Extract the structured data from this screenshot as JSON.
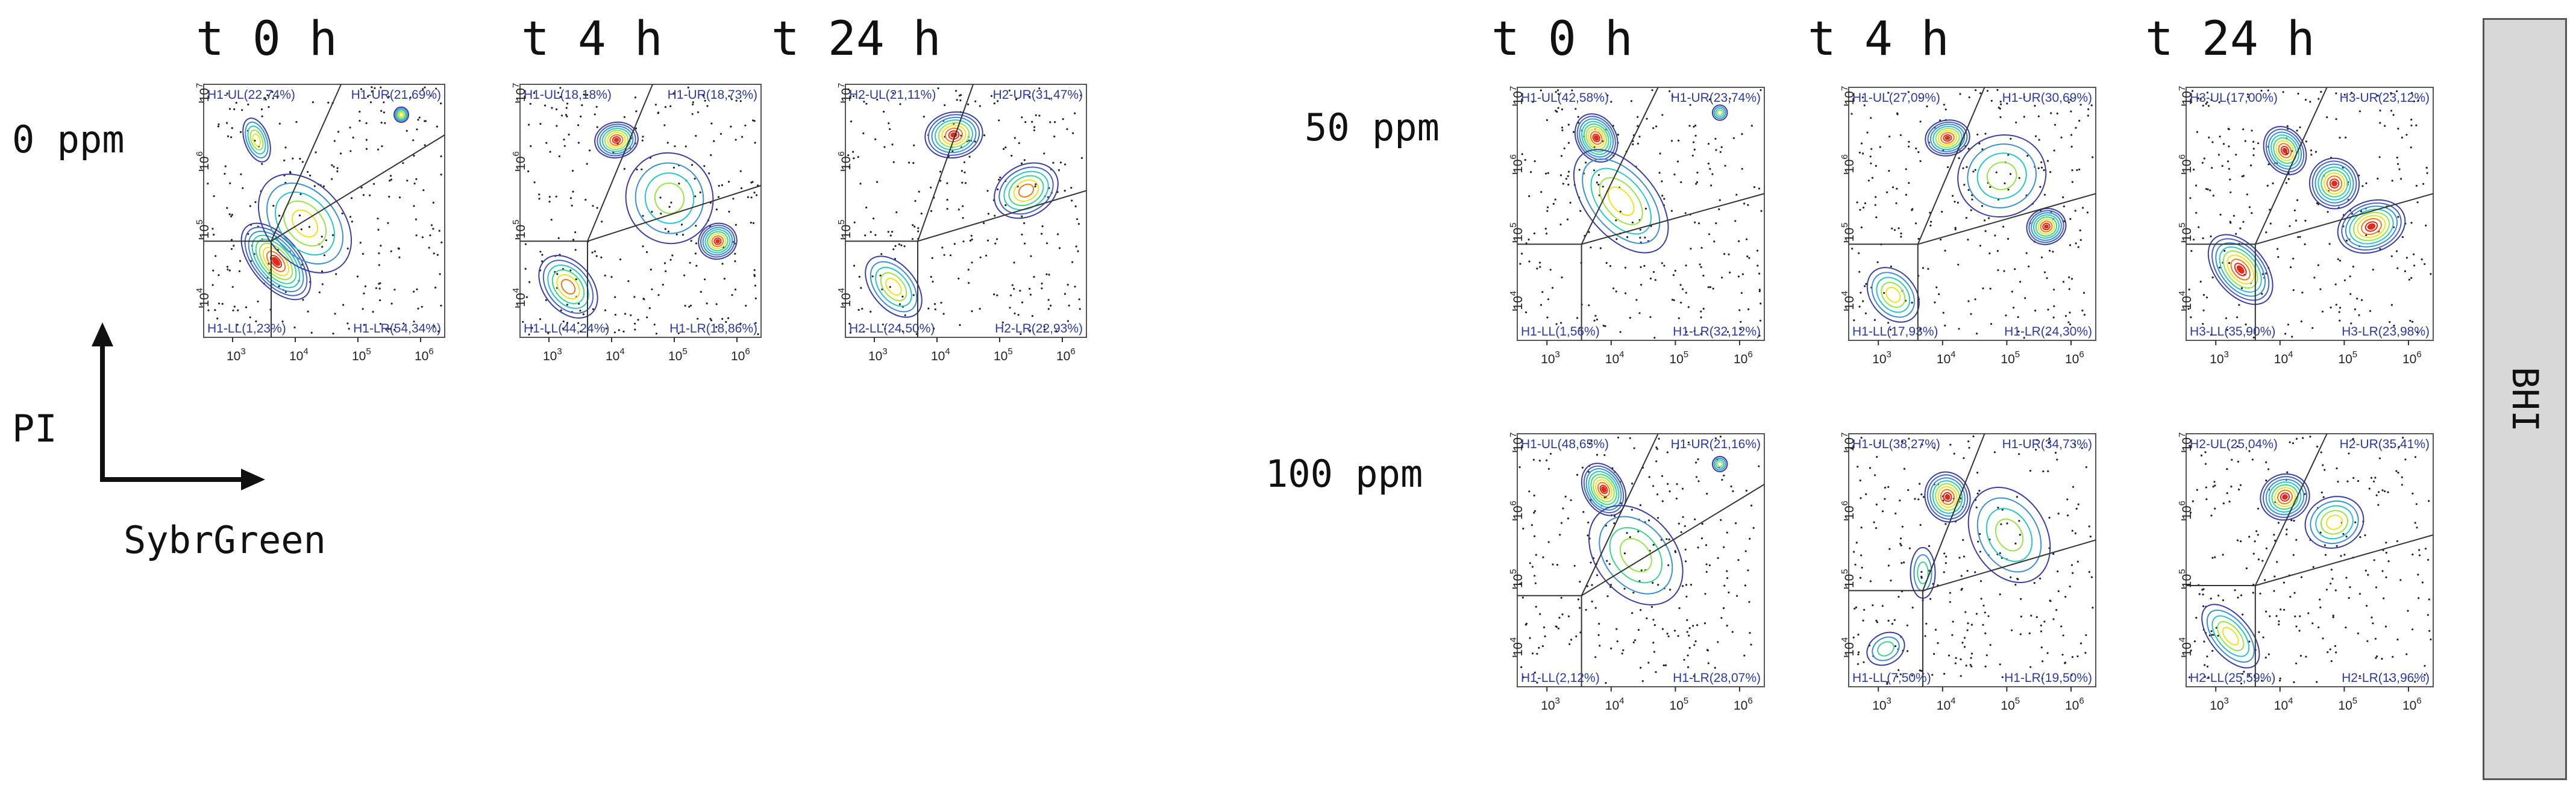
{
  "legend": {
    "y_axis": "PI",
    "x_axis": "SybrGreen"
  },
  "side_label": "BHI",
  "left_group": {
    "times": [
      "t 0 h",
      "t 4 h",
      "t 24 h"
    ],
    "row_label": "0 ppm",
    "panels": [
      {
        "UL": "H1-UL(22,74%)",
        "UR": "H1-UR(21,69%)",
        "LL": "H1-LL(1,23%)",
        "LR": "H1-LR(54,34%)"
      },
      {
        "UL": "H1-UL(18,18%)",
        "UR": "H1-UR(18,73%)",
        "LL": "H1-LL(44,24%)",
        "LR": "H1-LR(18,86%)"
      },
      {
        "UL": "H2-UL(21,11%)",
        "UR": "H2-UR(31,47%)",
        "LL": "H2-LL(24,50%)",
        "LR": "H2-LR(22,93%)"
      }
    ]
  },
  "right_group": {
    "times": [
      "t 0 h",
      "t 4 h",
      "t 24 h"
    ],
    "rows": [
      {
        "label": "50 ppm",
        "panels": [
          {
            "UL": "H1-UL(42,58%)",
            "UR": "H1-UR(23,74%)",
            "LL": "H1-LL(1,56%)",
            "LR": "H1-LR(32,12%)"
          },
          {
            "UL": "H1-UL(27,09%)",
            "UR": "H1-UR(30,69%)",
            "LL": "H1-LL(17,93%)",
            "LR": "H1-LR(24,30%)"
          },
          {
            "UL": "H3-UL(17,00%)",
            "UR": "H3-UR(23,12%)",
            "LL": "H3-LL(35,90%)",
            "LR": "H3-LR(23,98%)"
          }
        ]
      },
      {
        "label": "100 ppm",
        "panels": [
          {
            "UL": "H1-UL(48,65%)",
            "UR": "H1-UR(21,16%)",
            "LL": "H1-LL(2,12%)",
            "LR": "H1-LR(28,07%)"
          },
          {
            "UL": "H1-UL(38,27%)",
            "UR": "H1-UR(34,73%)",
            "LL": "H1-LL(7,50%)",
            "LR": "H1-LR(19,50%)"
          },
          {
            "UL": "H2-UL(25,04%)",
            "UR": "H2-UR(35,41%)",
            "LL": "H2-LL(25,59%)",
            "LR": "H2-LR(13,96%)"
          }
        ]
      }
    ]
  },
  "ticks": {
    "x": [
      "3",
      "4",
      "5",
      "6"
    ],
    "y": [
      "4",
      "5",
      "6",
      "7"
    ],
    "base": "10"
  },
  "colors": {
    "contour_outer": "#3a3fa0",
    "contour_mid": "#27c7c7",
    "contour_hot": "#f2e21c",
    "contour_core": "#e02a1a",
    "gate_lines": "#333333",
    "quadrant_text": "#2b3aa0"
  }
}
